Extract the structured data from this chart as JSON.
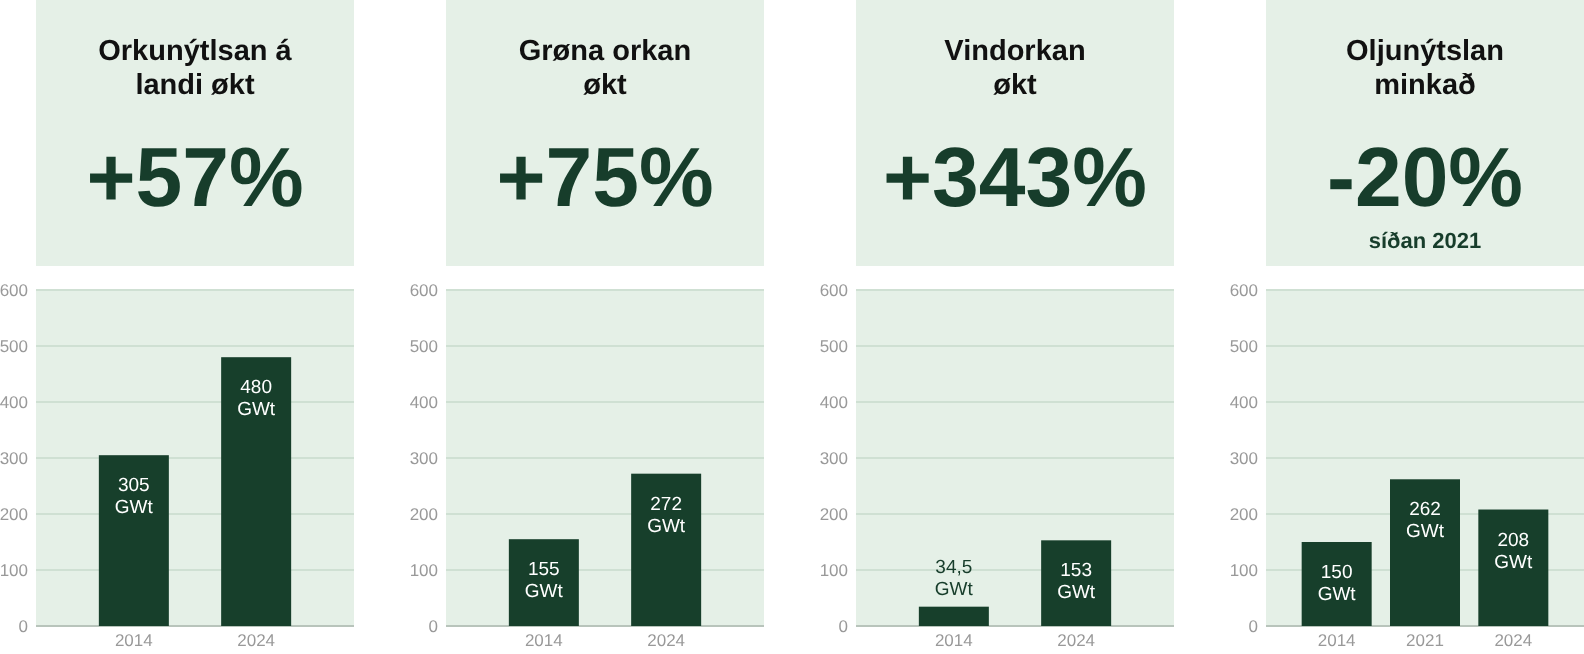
{
  "chart_data": [
    {
      "type": "bar",
      "title": "Orkunýtlsan á\nlandi økt",
      "subtitle": "+57%",
      "categories": [
        "2014",
        "2024"
      ],
      "values": [
        305,
        480
      ],
      "value_labels": [
        "305 GWt",
        "480 GWt"
      ],
      "color": "#173f2b",
      "ylim": [
        0,
        600
      ],
      "yticks": [
        0,
        100,
        200,
        300,
        400,
        500,
        600
      ],
      "grid": "y"
    },
    {
      "type": "bar",
      "title": "Grøna orkan\nøkt",
      "subtitle": "+75%",
      "categories": [
        "2014",
        "2024"
      ],
      "values": [
        155,
        272
      ],
      "value_labels": [
        "155 GWt",
        "272 GWt"
      ],
      "color": "#173f2b",
      "ylim": [
        0,
        600
      ],
      "yticks": [
        0,
        100,
        200,
        300,
        400,
        500,
        600
      ],
      "grid": "y"
    },
    {
      "type": "bar",
      "title": "Vindorkan\nøkt",
      "subtitle": "+343%",
      "categories": [
        "2014",
        "2024"
      ],
      "values": [
        34.5,
        153
      ],
      "value_labels": [
        "34,5 GWt",
        "153 GWt"
      ],
      "color": "#173f2b",
      "ylim": [
        0,
        600
      ],
      "yticks": [
        0,
        100,
        200,
        300,
        400,
        500,
        600
      ],
      "grid": "y"
    },
    {
      "type": "bar",
      "title": "Oljunýtslan\nminkað",
      "subtitle": "-20%",
      "annotations": [
        "síðan 2021"
      ],
      "categories": [
        "2014",
        "2021",
        "2024"
      ],
      "values": [
        150,
        262,
        208
      ],
      "value_labels": [
        "150 GWt",
        "262 GWt",
        "208 GWt"
      ],
      "color": "#173f2b",
      "ylim": [
        0,
        600
      ],
      "yticks": [
        0,
        100,
        200,
        300,
        400,
        500,
        600
      ],
      "grid": "y"
    }
  ]
}
